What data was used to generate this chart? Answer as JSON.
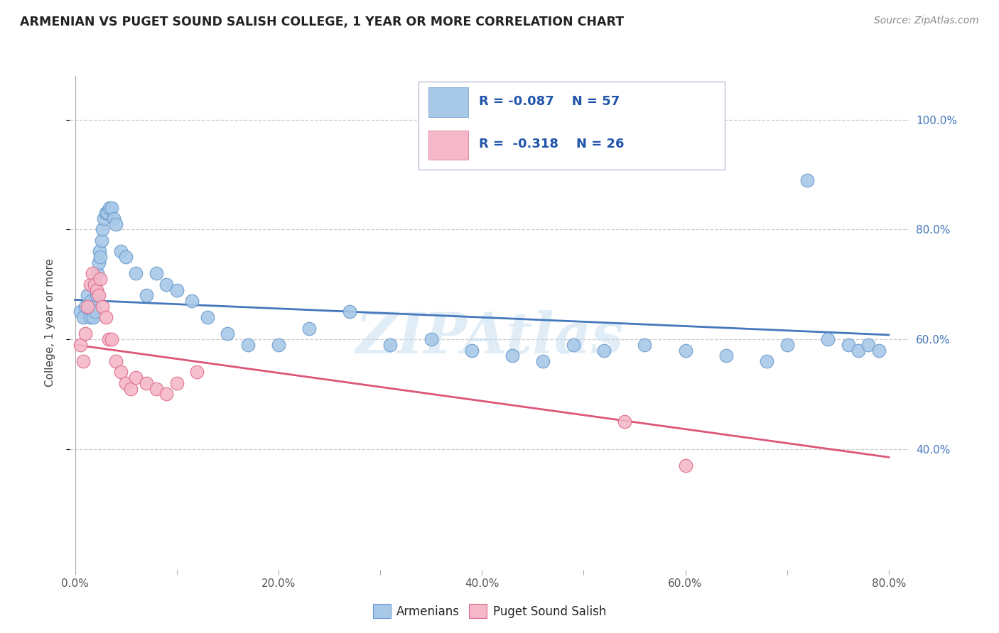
{
  "title": "ARMENIAN VS PUGET SOUND SALISH COLLEGE, 1 YEAR OR MORE CORRELATION CHART",
  "source": "Source: ZipAtlas.com",
  "ylabel": "College, 1 year or more",
  "xlim": [
    -0.005,
    0.82
  ],
  "ylim": [
    0.18,
    1.08
  ],
  "xtick_values": [
    0.0,
    0.1,
    0.2,
    0.3,
    0.4,
    0.5,
    0.6,
    0.7,
    0.8
  ],
  "xtick_labels": [
    "0.0%",
    "",
    "20.0%",
    "",
    "40.0%",
    "",
    "60.0%",
    "",
    "80.0%"
  ],
  "ytick_values": [
    1.0,
    0.8,
    0.6,
    0.4
  ],
  "ytick_labels_right": [
    "100.0%",
    "80.0%",
    "60.0%",
    "40.0%"
  ],
  "blue_color": "#a8c8e8",
  "pink_color": "#f4b8c8",
  "blue_edge_color": "#6699cc",
  "pink_edge_color": "#dd6688",
  "blue_line_color": "#4477bb",
  "pink_line_color": "#dd5577",
  "watermark": "ZIPAtlas",
  "legend_R1": "R = -0.087",
  "legend_N1": "N = 57",
  "legend_R2": "R = -0.318",
  "legend_N2": "N = 26",
  "legend_label1": "Armenians",
  "legend_label2": "Puget Sound Salish",
  "blue_scatter_x": [
    0.005,
    0.008,
    0.01,
    0.012,
    0.014,
    0.015,
    0.016,
    0.017,
    0.018,
    0.019,
    0.02,
    0.021,
    0.022,
    0.023,
    0.024,
    0.025,
    0.026,
    0.027,
    0.028,
    0.03,
    0.032,
    0.034,
    0.036,
    0.038,
    0.04,
    0.045,
    0.05,
    0.06,
    0.07,
    0.08,
    0.09,
    0.1,
    0.115,
    0.13,
    0.15,
    0.17,
    0.2,
    0.23,
    0.27,
    0.31,
    0.35,
    0.39,
    0.43,
    0.46,
    0.49,
    0.52,
    0.56,
    0.6,
    0.64,
    0.68,
    0.7,
    0.72,
    0.74,
    0.76,
    0.77,
    0.78,
    0.79
  ],
  "blue_scatter_y": [
    0.65,
    0.64,
    0.66,
    0.68,
    0.66,
    0.64,
    0.67,
    0.65,
    0.64,
    0.66,
    0.65,
    0.68,
    0.72,
    0.74,
    0.76,
    0.75,
    0.78,
    0.8,
    0.82,
    0.83,
    0.83,
    0.84,
    0.84,
    0.82,
    0.81,
    0.76,
    0.75,
    0.72,
    0.68,
    0.72,
    0.7,
    0.69,
    0.67,
    0.64,
    0.61,
    0.59,
    0.59,
    0.62,
    0.65,
    0.59,
    0.6,
    0.58,
    0.57,
    0.56,
    0.59,
    0.58,
    0.59,
    0.58,
    0.57,
    0.56,
    0.59,
    0.89,
    0.6,
    0.59,
    0.58,
    0.59,
    0.58
  ],
  "pink_scatter_x": [
    0.005,
    0.008,
    0.01,
    0.012,
    0.015,
    0.017,
    0.019,
    0.021,
    0.023,
    0.025,
    0.027,
    0.03,
    0.033,
    0.036,
    0.04,
    0.045,
    0.05,
    0.055,
    0.06,
    0.07,
    0.08,
    0.09,
    0.1,
    0.12,
    0.54,
    0.6
  ],
  "pink_scatter_y": [
    0.59,
    0.56,
    0.61,
    0.66,
    0.7,
    0.72,
    0.7,
    0.69,
    0.68,
    0.71,
    0.66,
    0.64,
    0.6,
    0.6,
    0.56,
    0.54,
    0.52,
    0.51,
    0.53,
    0.52,
    0.51,
    0.5,
    0.52,
    0.54,
    0.45,
    0.37
  ],
  "blue_trend_x": [
    0.0,
    0.8
  ],
  "blue_trend_y": [
    0.672,
    0.608
  ],
  "pink_trend_x": [
    0.0,
    0.8
  ],
  "pink_trend_y": [
    0.59,
    0.385
  ]
}
